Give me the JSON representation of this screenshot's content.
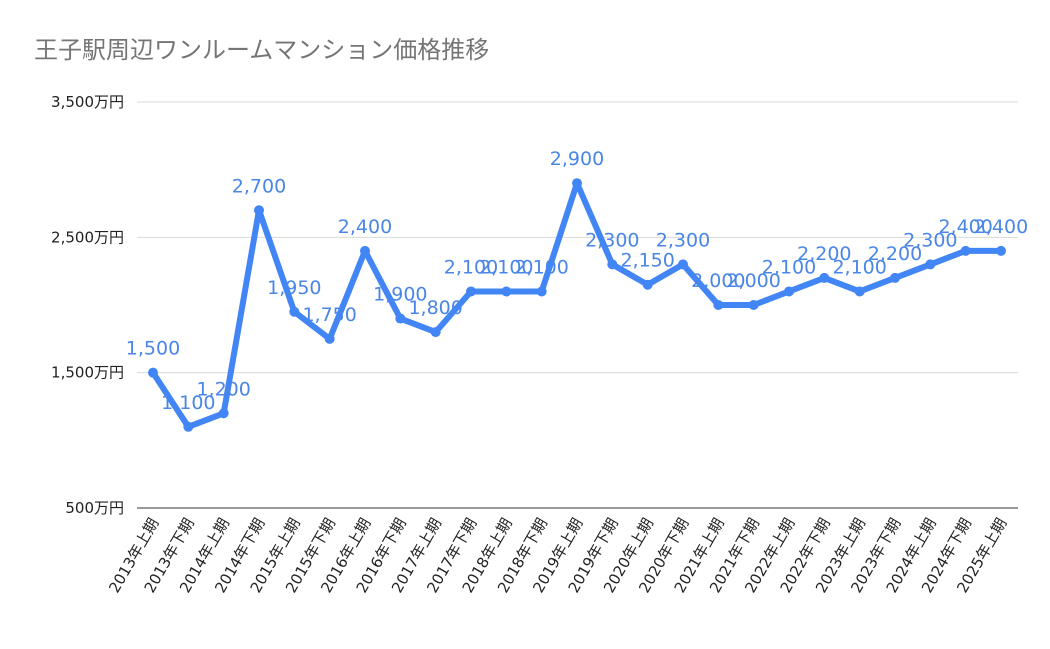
{
  "chart_data": {
    "type": "line",
    "title": "王子駅周辺ワンルームマンション価格推移",
    "xlabel": "",
    "ylabel": "",
    "ylim": [
      500,
      3500
    ],
    "yticks": [
      500,
      1500,
      2500,
      3500
    ],
    "ytick_labels": [
      "500万円",
      "1,500万円",
      "2,500万円",
      "3,500万円"
    ],
    "grid": true,
    "legend": "none",
    "colors": {
      "line": "#4285f4",
      "label": "#4a86e8",
      "grid": "#d9d9d9"
    },
    "categories": [
      "2013年上期",
      "2013年下期",
      "2014年上期",
      "2014年下期",
      "2015年上期",
      "2015年下期",
      "2016年上期",
      "2016年下期",
      "2017年上期",
      "2017年下期",
      "2018年上期",
      "2018年下期",
      "2019年上期",
      "2019年下期",
      "2020年上期",
      "2020年下期",
      "2021年上期",
      "2021年下期",
      "2022年上期",
      "2022年下期",
      "2023年上期",
      "2023年下期",
      "2024年上期",
      "2024年下期",
      "2025年上期"
    ],
    "values": [
      1500,
      1100,
      1200,
      2700,
      1950,
      1750,
      2400,
      1900,
      1800,
      2100,
      2100,
      2100,
      2900,
      2300,
      2150,
      2300,
      2000,
      2000,
      2100,
      2200,
      2100,
      2200,
      2300,
      2400,
      2400
    ],
    "data_labels": [
      "1,500",
      "1,100",
      "1,200",
      "2,700",
      "1,950",
      "1,750",
      "2,400",
      "1,900",
      "1,800",
      "2,100",
      "2,100",
      "2,100",
      "2,900",
      "2,300",
      "2,150",
      "2,300",
      "2,000",
      "2,000",
      "2,100",
      "2,200",
      "2,100",
      "2,200",
      "2,300",
      "2,400",
      "2,400"
    ]
  }
}
